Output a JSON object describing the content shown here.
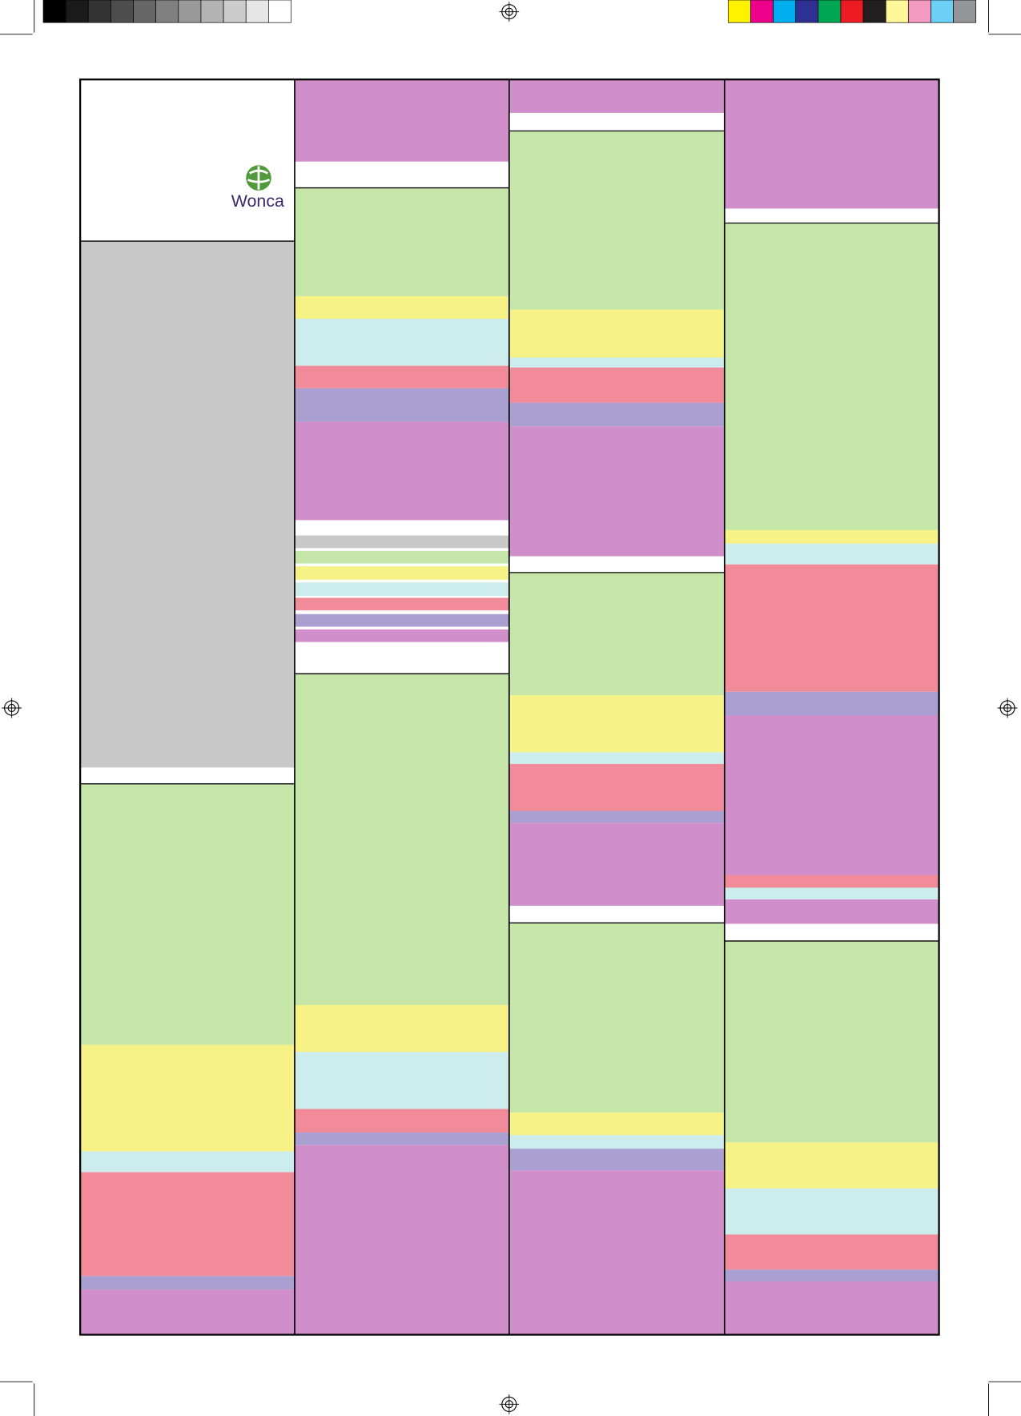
{
  "logo": {
    "text": "Wonca"
  }
}
